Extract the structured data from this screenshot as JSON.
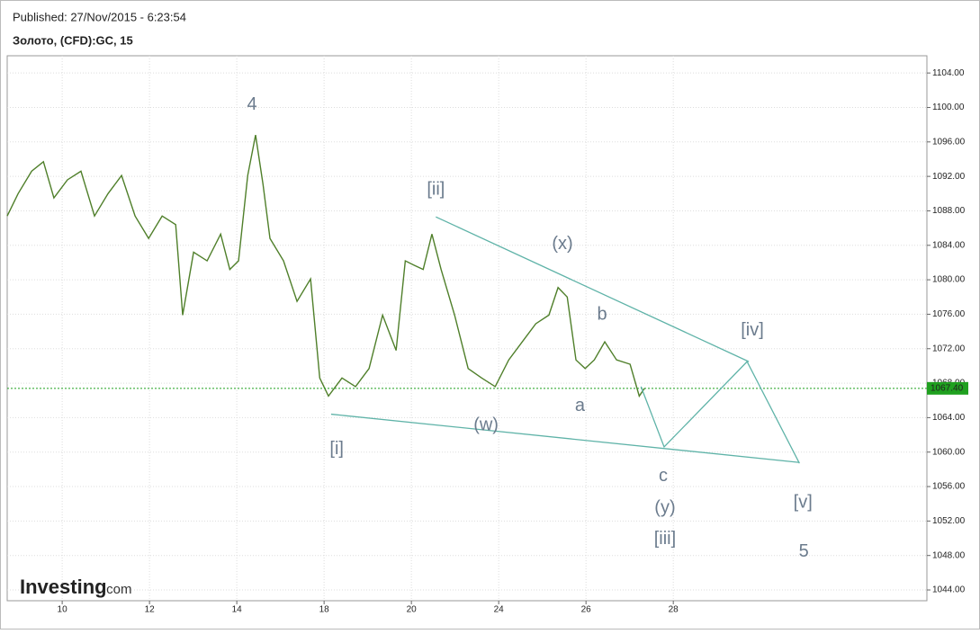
{
  "header": {
    "published": "Published: 27/Nov/2015 - 6:23:54",
    "symbol": "Золото, (CFD):GC, 15",
    "logo": "Investing",
    "logo_suffix": ".com"
  },
  "chart_data": {
    "type": "line",
    "color": "#4f7f2a",
    "grid": true,
    "x": [
      -1.26,
      -1.01,
      -0.7,
      -0.43,
      -0.19,
      0.12,
      0.43,
      0.74,
      1.05,
      1.36,
      1.67,
      1.98,
      2.29,
      2.6,
      2.76,
      3.01,
      3.32,
      3.63,
      3.84,
      4.04,
      4.25,
      4.43,
      4.6,
      4.76,
      5.07,
      5.38,
      5.69,
      5.9,
      6.1,
      6.41,
      6.72,
      7.03,
      7.34,
      7.65,
      7.86,
      8.06,
      8.27,
      8.47,
      8.68,
      8.99,
      9.3,
      9.61,
      9.92,
      10.23,
      10.54,
      10.85,
      11.15,
      11.36,
      11.57,
      11.77,
      11.98,
      12.19,
      12.43,
      12.7,
      13.01,
      13.22,
      13.34
    ],
    "values": [
      1087.4,
      1090,
      1092.6,
      1093.7,
      1089.5,
      1091.6,
      1092.6,
      1087.4,
      1090,
      1092.1,
      1087.4,
      1084.8,
      1087.4,
      1086.4,
      1075.9,
      1083.2,
      1082.2,
      1085.3,
      1081.2,
      1082.2,
      1092.1,
      1096.8,
      1091.1,
      1084.8,
      1082.2,
      1077.5,
      1080.1,
      1068.6,
      1066.5,
      1068.6,
      1067.6,
      1069.7,
      1075.9,
      1071.8,
      1082.2,
      1081.7,
      1081.2,
      1085.3,
      1081.2,
      1075.9,
      1069.7,
      1068.6,
      1067.6,
      1070.7,
      1072.8,
      1074.9,
      1075.9,
      1079.1,
      1078,
      1070.7,
      1069.7,
      1070.7,
      1072.8,
      1070.7,
      1070.2,
      1066.5,
      1067.4
    ],
    "xlim": [
      -1.26,
      19.81
    ],
    "ylim": [
      1042.75,
      1106
    ],
    "xticks": [
      {
        "value": 0,
        "label": "10"
      },
      {
        "value": 2,
        "label": "12"
      },
      {
        "value": 4,
        "label": "14"
      },
      {
        "value": 6,
        "label": "18"
      },
      {
        "value": 8,
        "label": "20"
      },
      {
        "value": 10,
        "label": "24"
      },
      {
        "value": 12,
        "label": "26"
      },
      {
        "value": 14,
        "label": "28"
      }
    ],
    "yticks": [
      {
        "value": 1044,
        "label": "1044.00"
      },
      {
        "value": 1048,
        "label": "1048.00"
      },
      {
        "value": 1052,
        "label": "1052.00"
      },
      {
        "value": 1056,
        "label": "1056.00"
      },
      {
        "value": 1060,
        "label": "1060.00"
      },
      {
        "value": 1064,
        "label": "1064.00"
      },
      {
        "value": 1068,
        "label": "1068.00"
      },
      {
        "value": 1072,
        "label": "1072.00"
      },
      {
        "value": 1076,
        "label": "1076.00"
      },
      {
        "value": 1080,
        "label": "1080.00"
      },
      {
        "value": 1084,
        "label": "1084.00"
      },
      {
        "value": 1088,
        "label": "1088.00"
      },
      {
        "value": 1092,
        "label": "1092.00"
      },
      {
        "value": 1096,
        "label": "1096.00"
      },
      {
        "value": 1100,
        "label": "1100.00"
      },
      {
        "value": 1104,
        "label": "1104.00"
      }
    ],
    "last_price": {
      "value": 1067.4,
      "label": "1067.40"
    },
    "annotations": [
      {
        "text": "4",
        "x": 4.35,
        "y": 1100.3
      },
      {
        "text": "[ii]",
        "x": 8.56,
        "y": 1090.4
      },
      {
        "text": "(x)",
        "x": 11.46,
        "y": 1084.1
      },
      {
        "text": "b",
        "x": 12.37,
        "y": 1075.9
      },
      {
        "text": "[iv]",
        "x": 15.81,
        "y": 1074.1
      },
      {
        "text": "a",
        "x": 11.86,
        "y": 1065.3
      },
      {
        "text": "(w)",
        "x": 9.71,
        "y": 1063.1
      },
      {
        "text": "[i]",
        "x": 6.29,
        "y": 1060.3
      },
      {
        "text": "c",
        "x": 13.77,
        "y": 1057.2
      },
      {
        "text": "(y)",
        "x": 13.81,
        "y": 1053.5
      },
      {
        "text": "[iii]",
        "x": 13.81,
        "y": 1049.9
      },
      {
        "text": "[v]",
        "x": 16.97,
        "y": 1054.1
      },
      {
        "text": "5",
        "x": 16.99,
        "y": 1048.4
      }
    ],
    "drawn_lines": [
      {
        "x": [
          8.56,
          15.73
        ],
        "y": [
          1087.3,
          1070.5
        ]
      },
      {
        "x": [
          6.16,
          16.89
        ],
        "y": [
          1064.4,
          1058.8
        ]
      },
      {
        "x": [
          13.26,
          13.79,
          15.69,
          16.89
        ],
        "y": [
          1067.6,
          1060.6,
          1070.5,
          1058.7
        ]
      }
    ]
  }
}
